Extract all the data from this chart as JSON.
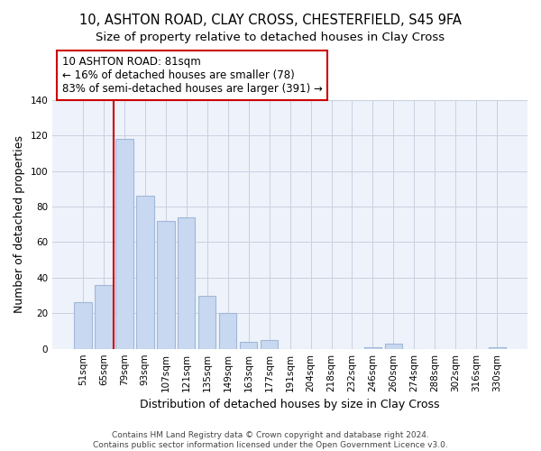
{
  "title": "10, ASHTON ROAD, CLAY CROSS, CHESTERFIELD, S45 9FA",
  "subtitle": "Size of property relative to detached houses in Clay Cross",
  "xlabel": "Distribution of detached houses by size in Clay Cross",
  "ylabel": "Number of detached properties",
  "bar_labels": [
    "51sqm",
    "65sqm",
    "79sqm",
    "93sqm",
    "107sqm",
    "121sqm",
    "135sqm",
    "149sqm",
    "163sqm",
    "177sqm",
    "191sqm",
    "204sqm",
    "218sqm",
    "232sqm",
    "246sqm",
    "260sqm",
    "274sqm",
    "288sqm",
    "302sqm",
    "316sqm",
    "330sqm"
  ],
  "bar_values": [
    26,
    36,
    118,
    86,
    72,
    74,
    30,
    20,
    4,
    5,
    0,
    0,
    0,
    0,
    1,
    3,
    0,
    0,
    0,
    0,
    1
  ],
  "bar_color": "#c8d8f0",
  "bar_edge_color": "#a0b8d8",
  "vline_x_index": 2,
  "vline_color": "#cc0000",
  "annotation_line1": "10 ASHTON ROAD: 81sqm",
  "annotation_line2": "← 16% of detached houses are smaller (78)",
  "annotation_line3": "83% of semi-detached houses are larger (391) →",
  "annotation_box_color": "#ffffff",
  "annotation_box_edge": "#cc0000",
  "ylim": [
    0,
    140
  ],
  "yticks": [
    0,
    20,
    40,
    60,
    80,
    100,
    120,
    140
  ],
  "footer_line1": "Contains HM Land Registry data © Crown copyright and database right 2024.",
  "footer_line2": "Contains public sector information licensed under the Open Government Licence v3.0.",
  "title_fontsize": 10.5,
  "subtitle_fontsize": 9.5,
  "axis_label_fontsize": 9,
  "tick_fontsize": 7.5,
  "annotation_fontsize": 8.5,
  "footer_fontsize": 6.5,
  "bg_color": "#eef2fa"
}
